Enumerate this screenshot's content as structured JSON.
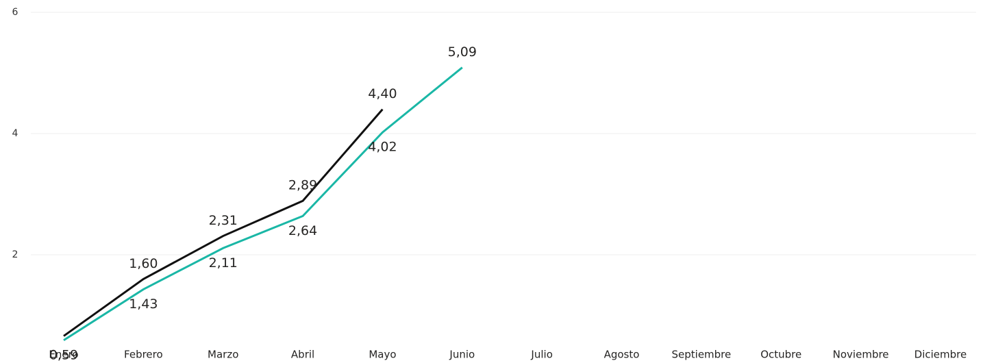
{
  "chart_data": {
    "type": "line",
    "categories": [
      "Enero",
      "Febrero",
      "Marzo",
      "Abril",
      "Mayo",
      "Junio",
      "Julio",
      "Agosto",
      "Septiembre",
      "Octubre",
      "Noviembre",
      "Diciembre"
    ],
    "series": [
      {
        "color": "#1ab7a6",
        "values": [
          0.59,
          1.43,
          2.11,
          2.64,
          4.02,
          5.09,
          null,
          null,
          null,
          null,
          null,
          null
        ],
        "value_labels": [
          "0,59",
          "1,43",
          "2,11",
          "2,64",
          "4,02",
          "5,09",
          null,
          null,
          null,
          null,
          null,
          null
        ]
      },
      {
        "color": "#111111",
        "values": [
          0.66,
          1.6,
          2.31,
          2.89,
          4.4,
          null,
          null,
          null,
          null,
          null,
          null,
          null
        ],
        "value_labels": [
          null,
          "1,60",
          "2,31",
          "2,89",
          "4,40",
          null,
          null,
          null,
          null,
          null,
          null,
          null
        ]
      }
    ],
    "ylim": [
      0.5,
      6
    ],
    "yticks": [
      2,
      4,
      6
    ],
    "grid": true
  }
}
